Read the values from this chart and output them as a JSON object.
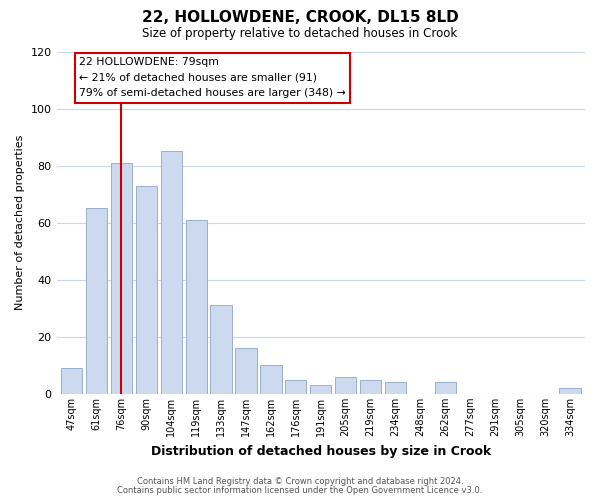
{
  "title": "22, HOLLOWDENE, CROOK, DL15 8LD",
  "subtitle": "Size of property relative to detached houses in Crook",
  "xlabel": "Distribution of detached houses by size in Crook",
  "ylabel": "Number of detached properties",
  "bar_labels": [
    "47sqm",
    "61sqm",
    "76sqm",
    "90sqm",
    "104sqm",
    "119sqm",
    "133sqm",
    "147sqm",
    "162sqm",
    "176sqm",
    "191sqm",
    "205sqm",
    "219sqm",
    "234sqm",
    "248sqm",
    "262sqm",
    "277sqm",
    "291sqm",
    "305sqm",
    "320sqm",
    "334sqm"
  ],
  "bar_values": [
    9,
    65,
    81,
    73,
    85,
    61,
    31,
    16,
    10,
    5,
    3,
    6,
    5,
    4,
    0,
    4,
    0,
    0,
    0,
    0,
    2
  ],
  "bar_color": "#ccd9ee",
  "bar_edge_color": "#9ab0cc",
  "vline_x": 2,
  "vline_color": "#cc0000",
  "annotation_title": "22 HOLLOWDENE: 79sqm",
  "annotation_line1": "← 21% of detached houses are smaller (91)",
  "annotation_line2": "79% of semi-detached houses are larger (348) →",
  "annotation_box_color": "#ffffff",
  "annotation_box_edge": "#cc0000",
  "ylim": [
    0,
    120
  ],
  "yticks": [
    0,
    20,
    40,
    60,
    80,
    100,
    120
  ],
  "footer1": "Contains HM Land Registry data © Crown copyright and database right 2024.",
  "footer2": "Contains public sector information licensed under the Open Government Licence v3.0.",
  "bg_color": "#ffffff",
  "grid_color": "#c8d8ea"
}
